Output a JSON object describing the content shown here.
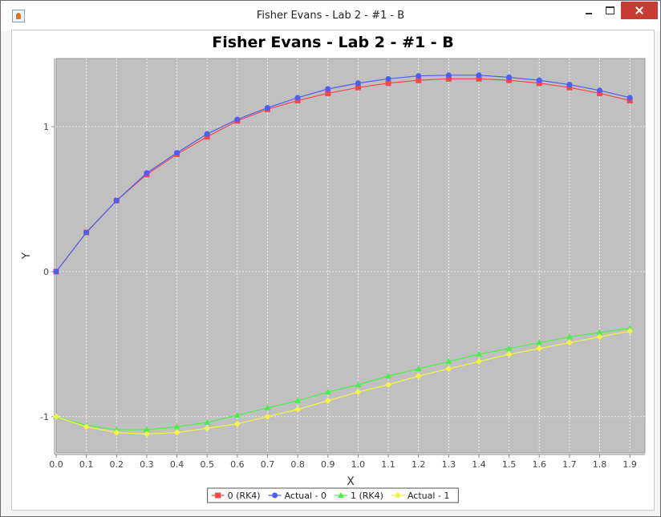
{
  "window": {
    "title": "Fisher Evans - Lab 2 - #1 - B",
    "icon": "java-icon",
    "controls": [
      "minimize-icon",
      "maximize-icon",
      "close-icon"
    ]
  },
  "colors": {
    "plot_background": "#c0c0c0",
    "gridline": "#ffffff",
    "close_button": "#c73c32",
    "series": [
      "#f4474b",
      "#4d5ef4",
      "#4af04a",
      "#f4f444"
    ]
  },
  "chart_data": {
    "type": "line",
    "title": "Fisher Evans - Lab 2 - #1 - B",
    "xlabel": "X",
    "ylabel": "Y",
    "xlim": [
      0,
      1.95
    ],
    "ylim": [
      -1.25,
      1.47
    ],
    "xticks": [
      "0.0",
      "0.1",
      "0.2",
      "0.3",
      "0.4",
      "0.5",
      "0.6",
      "0.7",
      "0.8",
      "0.9",
      "1.0",
      "1.1",
      "1.2",
      "1.3",
      "1.4",
      "1.5",
      "1.6",
      "1.7",
      "1.8",
      "1.9"
    ],
    "yticks": [
      {
        "value": -1,
        "label": "-1"
      },
      {
        "value": 0,
        "label": "0"
      },
      {
        "value": 1,
        "label": "1"
      }
    ],
    "grid": true,
    "legend_position": "bottom",
    "x": [
      0,
      0.1,
      0.2,
      0.3,
      0.4,
      0.5,
      0.6,
      0.7,
      0.8,
      0.9,
      1.0,
      1.1,
      1.2,
      1.3,
      1.4,
      1.5,
      1.6,
      1.7,
      1.8,
      1.9
    ],
    "series": [
      {
        "name": "0 (RK4)",
        "marker": "square",
        "color": "#f4474b",
        "values": [
          0,
          0.27,
          0.49,
          0.67,
          0.81,
          0.93,
          1.04,
          1.12,
          1.18,
          1.23,
          1.27,
          1.3,
          1.32,
          1.33,
          1.33,
          1.32,
          1.3,
          1.27,
          1.23,
          1.18
        ]
      },
      {
        "name": "Actual - 0",
        "marker": "circle",
        "color": "#4d5ef4",
        "values": [
          0,
          0.27,
          0.49,
          0.68,
          0.82,
          0.95,
          1.05,
          1.13,
          1.2,
          1.26,
          1.3,
          1.33,
          1.35,
          1.355,
          1.355,
          1.34,
          1.32,
          1.29,
          1.25,
          1.2
        ]
      },
      {
        "name": "1 (RK4)",
        "marker": "triangle",
        "color": "#4af04a",
        "values": [
          -1.0,
          -1.06,
          -1.09,
          -1.09,
          -1.07,
          -1.04,
          -0.99,
          -0.94,
          -0.89,
          -0.83,
          -0.78,
          -0.72,
          -0.67,
          -0.62,
          -0.57,
          -0.53,
          -0.49,
          -0.45,
          -0.42,
          -0.39
        ]
      },
      {
        "name": "Actual - 1",
        "marker": "diamond",
        "color": "#f4f444",
        "values": [
          -1.0,
          -1.07,
          -1.11,
          -1.12,
          -1.11,
          -1.08,
          -1.05,
          -1.0,
          -0.95,
          -0.89,
          -0.83,
          -0.78,
          -0.72,
          -0.67,
          -0.62,
          -0.57,
          -0.53,
          -0.49,
          -0.45,
          -0.41
        ]
      }
    ]
  }
}
